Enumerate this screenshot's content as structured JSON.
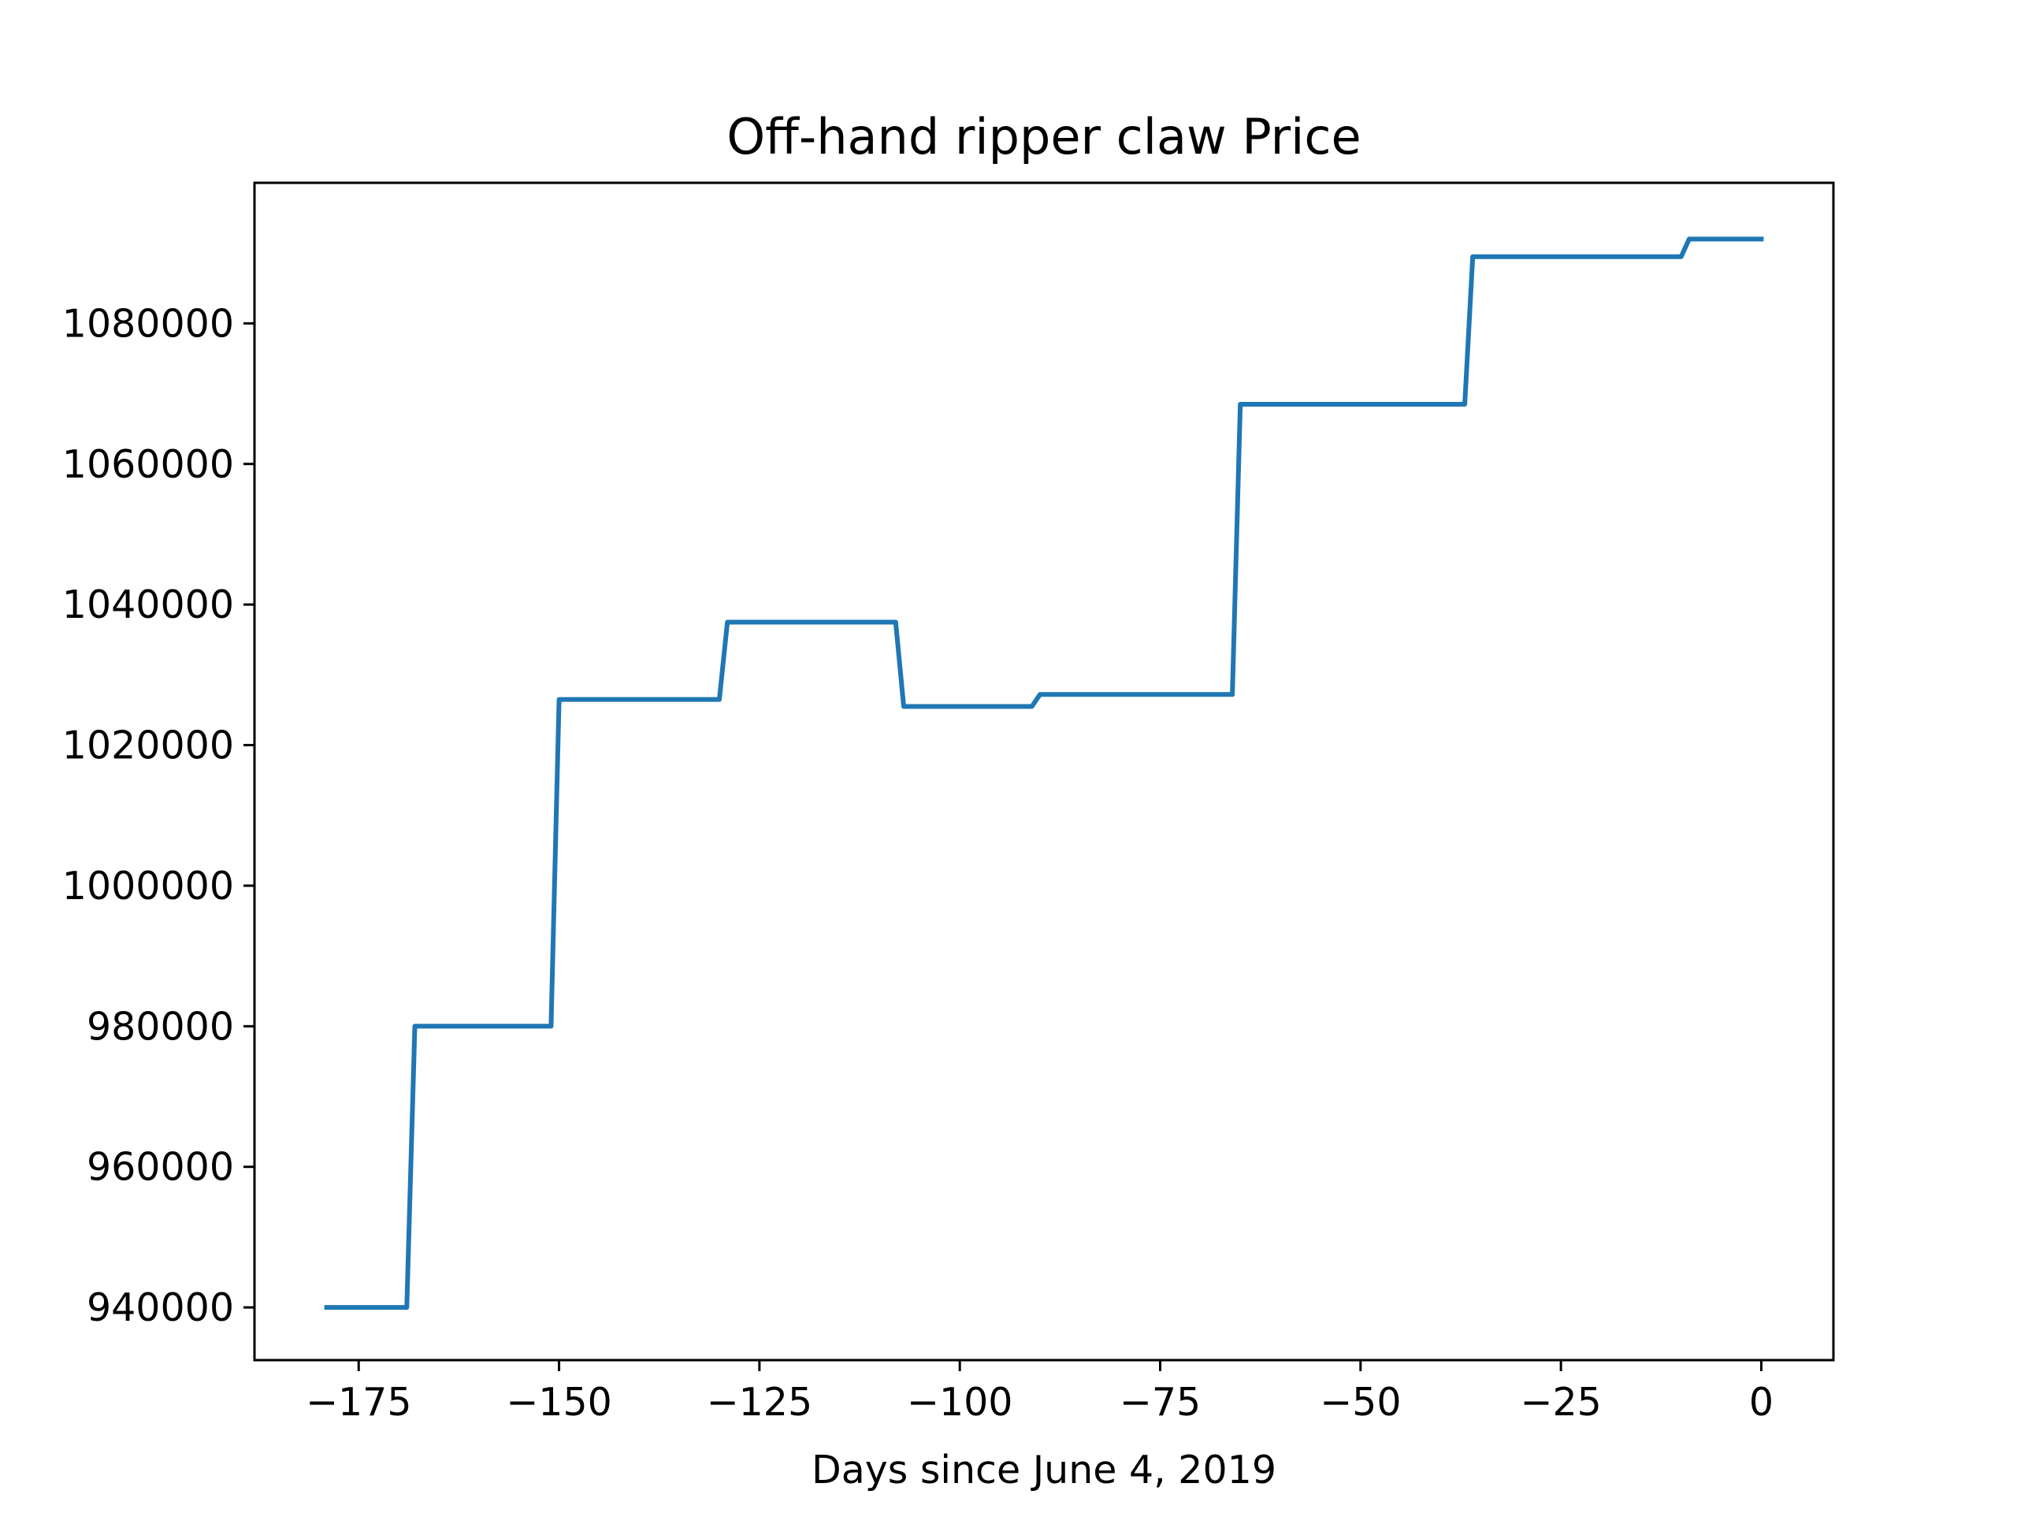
{
  "chart_data": {
    "type": "line",
    "title": "Off-hand ripper claw Price",
    "xlabel": "Days since June 4, 2019",
    "ylabel": "",
    "xlim": [
      -188,
      9
    ],
    "ylim": [
      932500,
      1100000
    ],
    "grid": false,
    "legend": "none",
    "x_ticks": [
      -175,
      -150,
      -125,
      -100,
      -75,
      -50,
      -25,
      0
    ],
    "x_tick_labels": [
      "−175",
      "−150",
      "−125",
      "−100",
      "−75",
      "−50",
      "−25",
      "0"
    ],
    "y_ticks": [
      940000,
      960000,
      980000,
      1000000,
      1020000,
      1040000,
      1060000,
      1080000
    ],
    "y_tick_labels": [
      "940000",
      "960000",
      "980000",
      "1000000",
      "1020000",
      "1040000",
      "1060000",
      "1080000"
    ],
    "series": [
      {
        "color": "#1f77b4",
        "x": [
          -179,
          -169,
          -168,
          -151,
          -150,
          -130,
          -129,
          -108,
          -107,
          -91,
          -90,
          -66,
          -65,
          -37,
          -36,
          -10,
          -9,
          0
        ],
        "y": [
          940000,
          940000,
          980000,
          980000,
          1026500,
          1026500,
          1037500,
          1037500,
          1025500,
          1025500,
          1027200,
          1027200,
          1068500,
          1068500,
          1089500,
          1089500,
          1092000,
          1092000
        ]
      }
    ]
  }
}
